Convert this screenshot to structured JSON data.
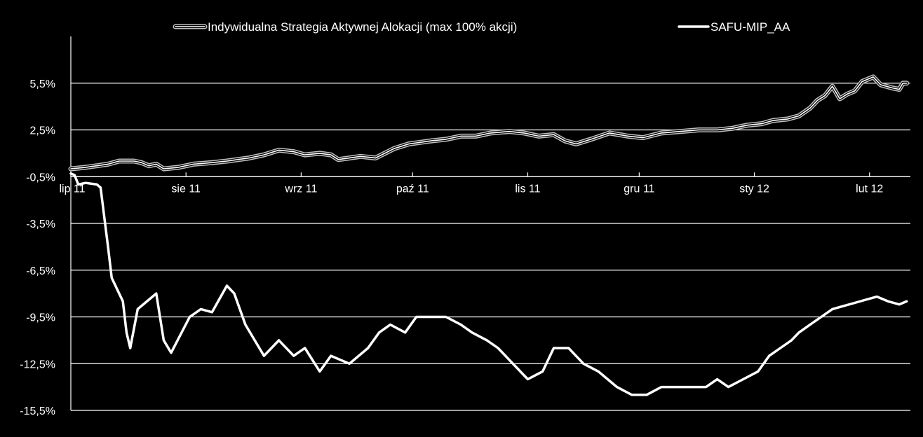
{
  "chart_data": {
    "type": "line",
    "title": "",
    "xlabel": "",
    "ylabel": "",
    "x_tick_labels": [
      "lip 11",
      "sie 11",
      "wrz 11",
      "paź 11",
      "lis 11",
      "gru 11",
      "sty 12",
      "lut 12"
    ],
    "y_tick_labels": [
      "5,5%",
      "2,5%",
      "-0,5%",
      "-3,5%",
      "-6,5%",
      "-9,5%",
      "-12,5%",
      "-15,5%"
    ],
    "y_ticks": [
      5.5,
      2.5,
      -0.5,
      -3.5,
      -6.5,
      -9.5,
      -12.5,
      -15.5
    ],
    "ylim": [
      -15.5,
      8.5
    ],
    "x_range": [
      "2011-07-01",
      "2012-02-12"
    ],
    "grid": "horizontal",
    "legend_position": "top",
    "colors": {
      "background": "#000000",
      "line": "#ffffff",
      "grid": "#ffffff",
      "outline": "#bfbfbf"
    },
    "series": [
      {
        "name": "Indywidualna Strategia Aktywnej Alokacji (max 100% akcji)",
        "style": "double",
        "points": [
          [
            "2011-07-01",
            0.0
          ],
          [
            "2011-07-05",
            0.1
          ],
          [
            "2011-07-08",
            0.2
          ],
          [
            "2011-07-11",
            0.3
          ],
          [
            "2011-07-14",
            0.5
          ],
          [
            "2011-07-18",
            0.5
          ],
          [
            "2011-07-20",
            0.4
          ],
          [
            "2011-07-22",
            0.2
          ],
          [
            "2011-07-24",
            0.3
          ],
          [
            "2011-07-26",
            0.0
          ],
          [
            "2011-07-30",
            0.1
          ],
          [
            "2011-08-03",
            0.3
          ],
          [
            "2011-08-08",
            0.4
          ],
          [
            "2011-08-12",
            0.5
          ],
          [
            "2011-08-18",
            0.7
          ],
          [
            "2011-08-22",
            0.9
          ],
          [
            "2011-08-26",
            1.2
          ],
          [
            "2011-08-30",
            1.1
          ],
          [
            "2011-09-02",
            0.9
          ],
          [
            "2011-09-06",
            1.0
          ],
          [
            "2011-09-09",
            0.9
          ],
          [
            "2011-09-11",
            0.6
          ],
          [
            "2011-09-14",
            0.7
          ],
          [
            "2011-09-17",
            0.8
          ],
          [
            "2011-09-21",
            0.7
          ],
          [
            "2011-09-26",
            1.3
          ],
          [
            "2011-09-30",
            1.6
          ],
          [
            "2011-10-03",
            1.7
          ],
          [
            "2011-10-06",
            1.8
          ],
          [
            "2011-10-10",
            1.9
          ],
          [
            "2011-10-14",
            2.1
          ],
          [
            "2011-10-18",
            2.1
          ],
          [
            "2011-10-22",
            2.3
          ],
          [
            "2011-10-27",
            2.4
          ],
          [
            "2011-10-31",
            2.3
          ],
          [
            "2011-11-04",
            2.1
          ],
          [
            "2011-11-08",
            2.2
          ],
          [
            "2011-11-11",
            1.8
          ],
          [
            "2011-11-14",
            1.6
          ],
          [
            "2011-11-18",
            1.9
          ],
          [
            "2011-11-23",
            2.3
          ],
          [
            "2011-11-28",
            2.1
          ],
          [
            "2011-12-02",
            2.0
          ],
          [
            "2011-12-07",
            2.3
          ],
          [
            "2011-12-12",
            2.4
          ],
          [
            "2011-12-17",
            2.5
          ],
          [
            "2011-12-22",
            2.5
          ],
          [
            "2011-12-26",
            2.6
          ],
          [
            "2011-12-30",
            2.8
          ],
          [
            "2012-01-03",
            2.9
          ],
          [
            "2012-01-06",
            3.1
          ],
          [
            "2012-01-10",
            3.2
          ],
          [
            "2012-01-13",
            3.4
          ],
          [
            "2012-01-16",
            3.9
          ],
          [
            "2012-01-18",
            4.4
          ],
          [
            "2012-01-20",
            4.7
          ],
          [
            "2012-01-22",
            5.3
          ],
          [
            "2012-01-24",
            4.5
          ],
          [
            "2012-01-26",
            4.8
          ],
          [
            "2012-01-28",
            5.0
          ],
          [
            "2012-01-30",
            5.6
          ],
          [
            "2012-02-02",
            5.9
          ],
          [
            "2012-02-04",
            5.4
          ],
          [
            "2012-02-07",
            5.2
          ],
          [
            "2012-02-09",
            5.1
          ],
          [
            "2012-02-10",
            5.5
          ],
          [
            "2012-02-11",
            5.5
          ]
        ]
      },
      {
        "name": "SAFU-MIP_AA",
        "style": "solid",
        "points": [
          [
            "2011-07-01",
            -0.3
          ],
          [
            "2011-07-02",
            -0.4
          ],
          [
            "2011-07-03",
            -1.0
          ],
          [
            "2011-07-05",
            -0.9
          ],
          [
            "2011-07-08",
            -1.0
          ],
          [
            "2011-07-09",
            -1.2
          ],
          [
            "2011-07-11",
            -5.0
          ],
          [
            "2011-07-12",
            -7.0
          ],
          [
            "2011-07-15",
            -8.5
          ],
          [
            "2011-07-16",
            -10.5
          ],
          [
            "2011-07-17",
            -11.5
          ],
          [
            "2011-07-19",
            -9.0
          ],
          [
            "2011-07-24",
            -8.0
          ],
          [
            "2011-07-26",
            -11.0
          ],
          [
            "2011-07-28",
            -11.8
          ],
          [
            "2011-08-02",
            -9.5
          ],
          [
            "2011-08-05",
            -9.0
          ],
          [
            "2011-08-08",
            -9.2
          ],
          [
            "2011-08-12",
            -7.5
          ],
          [
            "2011-08-14",
            -8.0
          ],
          [
            "2011-08-17",
            -10.0
          ],
          [
            "2011-08-22",
            -12.0
          ],
          [
            "2011-08-26",
            -11.0
          ],
          [
            "2011-08-30",
            -12.0
          ],
          [
            "2011-09-02",
            -11.5
          ],
          [
            "2011-09-06",
            -13.0
          ],
          [
            "2011-09-09",
            -12.0
          ],
          [
            "2011-09-14",
            -12.5
          ],
          [
            "2011-09-19",
            -11.5
          ],
          [
            "2011-09-22",
            -10.5
          ],
          [
            "2011-09-25",
            -10.0
          ],
          [
            "2011-09-29",
            -10.5
          ],
          [
            "2011-10-02",
            -9.5
          ],
          [
            "2011-10-06",
            -9.5
          ],
          [
            "2011-10-10",
            -9.5
          ],
          [
            "2011-10-14",
            -10.0
          ],
          [
            "2011-10-17",
            -10.5
          ],
          [
            "2011-10-21",
            -11.0
          ],
          [
            "2011-10-24",
            -11.5
          ],
          [
            "2011-10-28",
            -12.5
          ],
          [
            "2011-11-01",
            -13.5
          ],
          [
            "2011-11-05",
            -13.0
          ],
          [
            "2011-11-08",
            -11.5
          ],
          [
            "2011-11-12",
            -11.5
          ],
          [
            "2011-11-16",
            -12.5
          ],
          [
            "2011-11-20",
            -13.0
          ],
          [
            "2011-11-25",
            -14.0
          ],
          [
            "2011-11-29",
            -14.5
          ],
          [
            "2011-12-03",
            -14.5
          ],
          [
            "2011-12-07",
            -14.0
          ],
          [
            "2011-12-11",
            -14.0
          ],
          [
            "2011-12-15",
            -14.0
          ],
          [
            "2011-12-19",
            -14.0
          ],
          [
            "2011-12-22",
            -13.5
          ],
          [
            "2011-12-25",
            -14.0
          ],
          [
            "2011-12-29",
            -13.5
          ],
          [
            "2012-01-02",
            -13.0
          ],
          [
            "2012-01-05",
            -12.0
          ],
          [
            "2012-01-08",
            -11.5
          ],
          [
            "2012-01-11",
            -11.0
          ],
          [
            "2012-01-13",
            -10.5
          ],
          [
            "2012-01-16",
            -10.0
          ],
          [
            "2012-01-19",
            -9.5
          ],
          [
            "2012-01-22",
            -9.0
          ],
          [
            "2012-01-25",
            -8.8
          ],
          [
            "2012-01-28",
            -8.6
          ],
          [
            "2012-01-31",
            -8.4
          ],
          [
            "2012-02-03",
            -8.2
          ],
          [
            "2012-02-06",
            -8.5
          ],
          [
            "2012-02-09",
            -8.7
          ],
          [
            "2012-02-11",
            -8.5
          ]
        ]
      }
    ]
  }
}
